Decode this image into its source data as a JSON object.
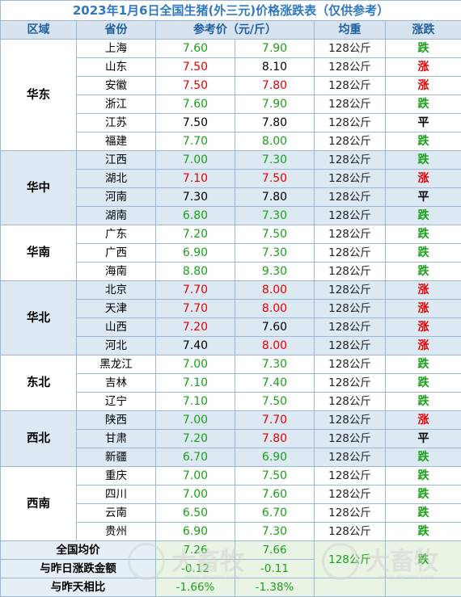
{
  "title": "2023年1月6日全国生猪(外三元)价格涨跌表（仅供参考）",
  "headers": {
    "region": "区域",
    "province": "省份",
    "price": "参考价（元/斤）",
    "weight": "均重",
    "change": "涨跌"
  },
  "colors": {
    "up": "#e60000",
    "down": "#18a218",
    "flat": "#000000",
    "header_bg": "#d7e4f0",
    "band_bg": "#dce8f2"
  },
  "regions": [
    {
      "name": "华东",
      "band": "w",
      "rows": [
        {
          "province": "上海",
          "p1": "7.60",
          "p2": "7.90",
          "c1": "green",
          "c2": "green",
          "weight": "128公斤",
          "change": "跌",
          "cc": "green"
        },
        {
          "province": "山东",
          "p1": "7.50",
          "p2": "8.10",
          "c1": "red",
          "c2": "black",
          "weight": "128公斤",
          "change": "涨",
          "cc": "red"
        },
        {
          "province": "安徽",
          "p1": "7.50",
          "p2": "7.80",
          "c1": "red",
          "c2": "red",
          "weight": "128公斤",
          "change": "涨",
          "cc": "red"
        },
        {
          "province": "浙江",
          "p1": "7.60",
          "p2": "7.90",
          "c1": "green",
          "c2": "green",
          "weight": "128公斤",
          "change": "跌",
          "cc": "green"
        },
        {
          "province": "江苏",
          "p1": "7.50",
          "p2": "7.80",
          "c1": "black",
          "c2": "black",
          "weight": "128公斤",
          "change": "平",
          "cc": "black"
        },
        {
          "province": "福建",
          "p1": "7.70",
          "p2": "8.00",
          "c1": "green",
          "c2": "green",
          "weight": "128公斤",
          "change": "跌",
          "cc": "green"
        }
      ]
    },
    {
      "name": "华中",
      "band": "b",
      "rows": [
        {
          "province": "江西",
          "p1": "7.00",
          "p2": "7.30",
          "c1": "green",
          "c2": "green",
          "weight": "128公斤",
          "change": "跌",
          "cc": "green"
        },
        {
          "province": "湖北",
          "p1": "7.10",
          "p2": "7.50",
          "c1": "red",
          "c2": "red",
          "weight": "128公斤",
          "change": "涨",
          "cc": "red"
        },
        {
          "province": "河南",
          "p1": "7.30",
          "p2": "7.80",
          "c1": "black",
          "c2": "black",
          "weight": "128公斤",
          "change": "平",
          "cc": "black"
        },
        {
          "province": "湖南",
          "p1": "6.80",
          "p2": "7.30",
          "c1": "green",
          "c2": "green",
          "weight": "128公斤",
          "change": "跌",
          "cc": "green"
        }
      ]
    },
    {
      "name": "华南",
      "band": "w",
      "rows": [
        {
          "province": "广东",
          "p1": "7.20",
          "p2": "7.50",
          "c1": "green",
          "c2": "green",
          "weight": "128公斤",
          "change": "跌",
          "cc": "green"
        },
        {
          "province": "广西",
          "p1": "6.90",
          "p2": "7.30",
          "c1": "green",
          "c2": "green",
          "weight": "128公斤",
          "change": "跌",
          "cc": "green"
        },
        {
          "province": "海南",
          "p1": "8.80",
          "p2": "9.30",
          "c1": "green",
          "c2": "green",
          "weight": "128公斤",
          "change": "跌",
          "cc": "green"
        }
      ]
    },
    {
      "name": "华北",
      "band": "b",
      "rows": [
        {
          "province": "北京",
          "p1": "7.70",
          "p2": "8.00",
          "c1": "red",
          "c2": "red",
          "weight": "128公斤",
          "change": "涨",
          "cc": "red"
        },
        {
          "province": "天津",
          "p1": "7.70",
          "p2": "8.00",
          "c1": "red",
          "c2": "red",
          "weight": "128公斤",
          "change": "涨",
          "cc": "red"
        },
        {
          "province": "山西",
          "p1": "7.20",
          "p2": "7.60",
          "c1": "red",
          "c2": "black",
          "weight": "128公斤",
          "change": "涨",
          "cc": "red"
        },
        {
          "province": "河北",
          "p1": "7.40",
          "p2": "8.00",
          "c1": "black",
          "c2": "red",
          "weight": "128公斤",
          "change": "涨",
          "cc": "red"
        }
      ]
    },
    {
      "name": "东北",
      "band": "w",
      "rows": [
        {
          "province": "黑龙江",
          "p1": "7.00",
          "p2": "7.30",
          "c1": "green",
          "c2": "green",
          "weight": "128公斤",
          "change": "跌",
          "cc": "green"
        },
        {
          "province": "吉林",
          "p1": "7.10",
          "p2": "7.40",
          "c1": "green",
          "c2": "green",
          "weight": "128公斤",
          "change": "跌",
          "cc": "green"
        },
        {
          "province": "辽宁",
          "p1": "7.10",
          "p2": "7.50",
          "c1": "green",
          "c2": "green",
          "weight": "128公斤",
          "change": "跌",
          "cc": "green"
        }
      ]
    },
    {
      "name": "西北",
      "band": "b",
      "rows": [
        {
          "province": "陕西",
          "p1": "7.00",
          "p2": "7.70",
          "c1": "green",
          "c2": "red",
          "weight": "128公斤",
          "change": "涨",
          "cc": "red"
        },
        {
          "province": "甘肃",
          "p1": "7.20",
          "p2": "7.80",
          "c1": "green",
          "c2": "red",
          "weight": "128公斤",
          "change": "平",
          "cc": "black"
        },
        {
          "province": "新疆",
          "p1": "6.70",
          "p2": "6.90",
          "c1": "green",
          "c2": "green",
          "weight": "128公斤",
          "change": "跌",
          "cc": "green"
        }
      ]
    },
    {
      "name": "西南",
      "band": "w",
      "rows": [
        {
          "province": "重庆",
          "p1": "7.00",
          "p2": "7.50",
          "c1": "green",
          "c2": "green",
          "weight": "128公斤",
          "change": "跌",
          "cc": "green"
        },
        {
          "province": "四川",
          "p1": "7.00",
          "p2": "7.60",
          "c1": "green",
          "c2": "green",
          "weight": "128公斤",
          "change": "跌",
          "cc": "green"
        },
        {
          "province": "云南",
          "p1": "6.50",
          "p2": "6.70",
          "c1": "green",
          "c2": "green",
          "weight": "128公斤",
          "change": "跌",
          "cc": "green"
        },
        {
          "province": "贵州",
          "p1": "6.90",
          "p2": "7.30",
          "c1": "green",
          "c2": "green",
          "weight": "128公斤",
          "change": "跌",
          "cc": "green"
        }
      ]
    }
  ],
  "footer": {
    "avg_label": "全国均价",
    "avg_p1": "7.26",
    "avg_p2": "7.66",
    "weight": "128公斤",
    "change": "跌",
    "diff_label": "与昨日涨跌金额",
    "diff_p1": "-0.12",
    "diff_p2": "-0.11",
    "ratio_label": "与昨天相比",
    "ratio_p1": "-1.66%",
    "ratio_p2": "-1.38%"
  },
  "watermark": {
    "text": "大畜牧",
    "url": "www.dxumu.com"
  }
}
